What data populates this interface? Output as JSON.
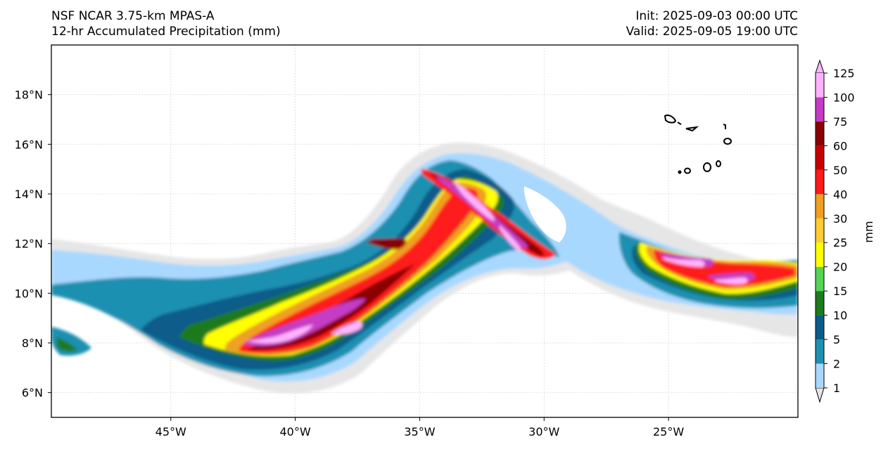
{
  "header": {
    "model_title": "NSF NCAR 3.75-km MPAS-A",
    "field_title": "12-hr Accumulated Precipitation (mm)",
    "init_text": "Init: 2025-09-03 00:00 UTC",
    "valid_text": "Valid: 2025-09-05 19:00 UTC"
  },
  "map": {
    "lat_ticks": [
      "18°N",
      "16°N",
      "14°N",
      "12°N",
      "10°N",
      "8°N",
      "6°N"
    ],
    "lon_ticks": [
      "45°W",
      "40°W",
      "35°W",
      "30°W",
      "25°W"
    ],
    "lat_values": [
      18,
      16,
      14,
      12,
      10,
      8,
      6
    ],
    "lon_values": [
      -45,
      -40,
      -35,
      -30,
      -25
    ],
    "lat_range": [
      5,
      20
    ],
    "lon_range": [
      -49.8,
      -19.8
    ],
    "gridlines": true,
    "coastline_region": "Cape Verde Islands"
  },
  "colorbar": {
    "label": "mm",
    "levels": [
      "1",
      "2",
      "5",
      "10",
      "15",
      "20",
      "25",
      "30",
      "40",
      "50",
      "60",
      "75",
      "100",
      "125"
    ],
    "colors": [
      "#e6e6e6",
      "#a9d8ff",
      "#1e90b0",
      "#0a5b8a",
      "#1e7a1e",
      "#55d455",
      "#ffff00",
      "#ffcc33",
      "#f0a020",
      "#ff1a1a",
      "#c80000",
      "#8b0000",
      "#c43cc4",
      "#ffb3ff"
    ],
    "extend": "both"
  }
}
